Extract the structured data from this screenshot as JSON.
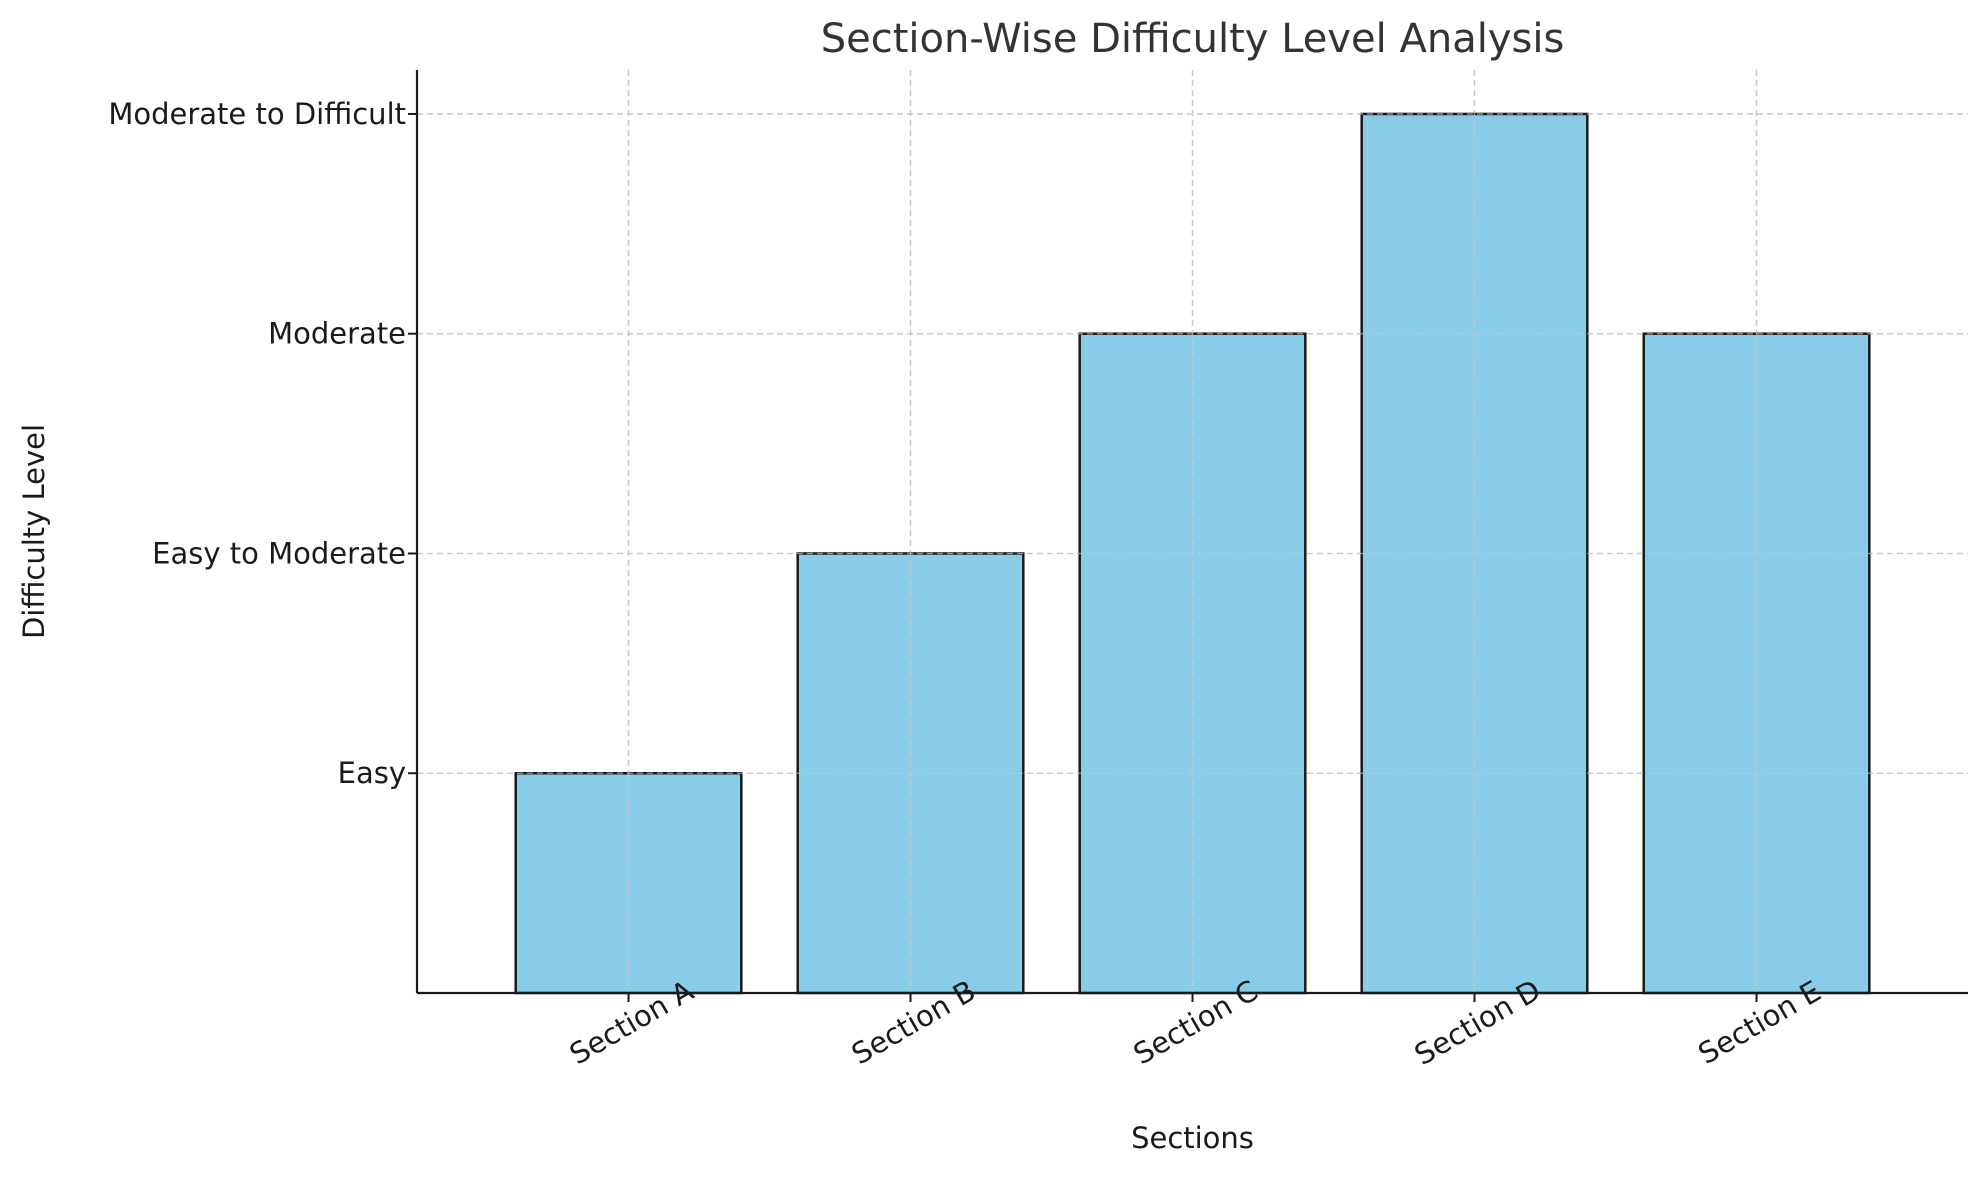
{
  "chart_data": {
    "type": "bar",
    "title": "Section-Wise Difficulty Level Analysis",
    "xlabel": "Sections",
    "ylabel": "Difficulty Level",
    "categories": [
      "Section A",
      "Section B",
      "Section C",
      "Section D",
      "Section E"
    ],
    "values": [
      1,
      2,
      3,
      4,
      3
    ],
    "ylim": [
      0,
      4.2
    ],
    "yticks": [
      {
        "value": 1,
        "label": "Easy"
      },
      {
        "value": 2,
        "label": "Easy to Moderate"
      },
      {
        "value": 3,
        "label": "Moderate"
      },
      {
        "value": 4,
        "label": "Moderate to Difficult"
      }
    ],
    "bar_color": "#89CCE8",
    "edge_color": "#1a1a1a",
    "grid": true,
    "legend": "none"
  }
}
